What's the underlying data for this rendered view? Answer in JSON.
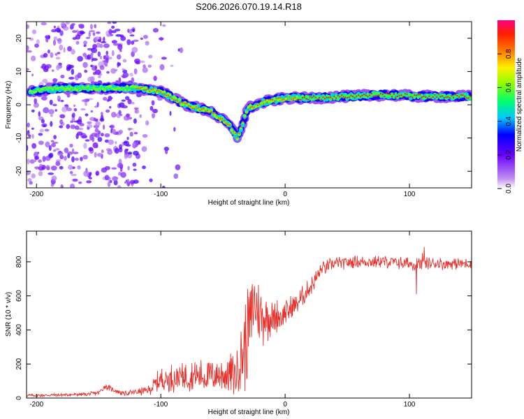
{
  "chart_data": [
    {
      "type": "heatmap",
      "title": "S206.2026.070.19.14.R18",
      "xlabel": "Height of straight line (km)",
      "ylabel": "Frequency (Hz)",
      "xlim": [
        -208,
        150
      ],
      "ylim": [
        -25,
        25
      ],
      "xticks": [
        -200,
        -100,
        0,
        100
      ],
      "yticks": [
        -20,
        -10,
        0,
        10,
        20
      ],
      "colorbar": {
        "label": "Normalized spectral amplitude",
        "range": [
          0,
          1
        ],
        "ticks": [
          "0.0",
          "0.2",
          "0.4",
          "0.6",
          "0.8"
        ],
        "tick_values": [
          0,
          0.2,
          0.4,
          0.6,
          0.8
        ]
      },
      "ridge": {
        "x": [
          -205,
          -180,
          -150,
          -120,
          -100,
          -80,
          -60,
          -45,
          -38,
          -30,
          -15,
          0,
          20,
          50,
          80,
          110,
          150
        ],
        "freq_hz": [
          4,
          5,
          5,
          5,
          4,
          0,
          -2,
          -6,
          -10,
          -1,
          1,
          2,
          2,
          2.5,
          3,
          2.5,
          2.5
        ]
      }
    },
    {
      "type": "line",
      "xlabel": "Height of straight line (km)",
      "ylabel": "SNR (10 * v/v)",
      "xlim": [
        -208,
        150
      ],
      "ylim": [
        0,
        980
      ],
      "xticks": [
        -200,
        -100,
        0,
        100
      ],
      "yticks": [
        0,
        200,
        400,
        600,
        800
      ],
      "series": [
        {
          "name": "SNR",
          "color": "#e8302b",
          "x": [
            -208,
            -180,
            -160,
            -150,
            -145,
            -130,
            -110,
            -100,
            -90,
            -80,
            -60,
            -40,
            -32,
            -25,
            -20,
            -10,
            0,
            10,
            20,
            30,
            40,
            60,
            80,
            100,
            110,
            120,
            150
          ],
          "mean": [
            15,
            18,
            22,
            30,
            70,
            25,
            45,
            110,
            120,
            130,
            130,
            150,
            320,
            550,
            480,
            470,
            500,
            560,
            650,
            760,
            790,
            800,
            800,
            790,
            790,
            790,
            790
          ],
          "amp": [
            10,
            10,
            12,
            15,
            20,
            15,
            30,
            80,
            90,
            100,
            110,
            150,
            300,
            250,
            200,
            120,
            90,
            70,
            60,
            50,
            40,
            40,
            40,
            45,
            45,
            40,
            40
          ]
        }
      ]
    }
  ]
}
